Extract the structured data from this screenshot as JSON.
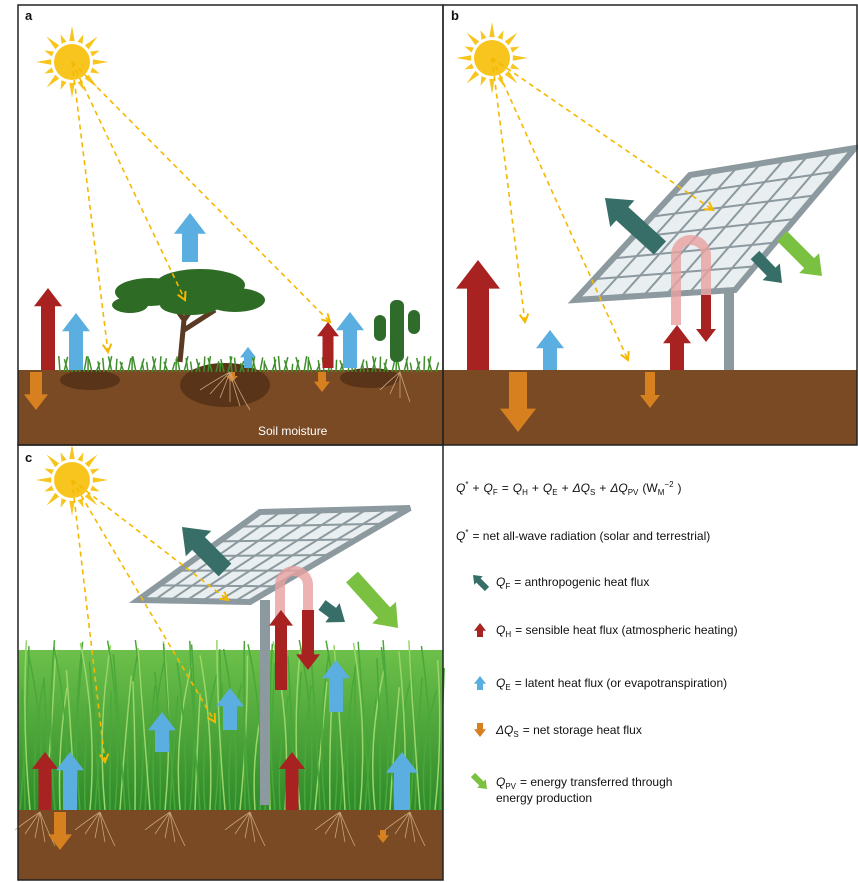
{
  "panels": [
    {
      "label": "a",
      "annotation": "Soil moisture"
    },
    {
      "label": "b"
    },
    {
      "label": "c"
    }
  ],
  "equation": [
    {
      "main": "Q",
      "sup": "*"
    },
    {
      "main": "+"
    },
    {
      "main": "Q",
      "sub": "F"
    },
    {
      "main": "="
    },
    {
      "main": "Q",
      "sub": "H"
    },
    {
      "main": "+"
    },
    {
      "main": "Q",
      "sub": "E"
    },
    {
      "main": "+"
    },
    {
      "main": "ΔQ",
      "sub": "S"
    },
    {
      "main": "+"
    },
    {
      "main": "ΔQ",
      "sub": "PV"
    },
    {
      "main": "(W",
      "sub": "M",
      "sup": "−2"
    },
    {
      "main": ")"
    }
  ],
  "legend": [
    {
      "symbol": "Q",
      "sup": "*",
      "text": "= net all-wave radiation (solar and terrestrial)"
    },
    {
      "symbol": "Q",
      "sub": "F",
      "text": "= anthropogenic heat flux"
    },
    {
      "symbol": "Q",
      "sub": "H",
      "text": "= sensible heat flux (atmospheric heating)"
    },
    {
      "symbol": "Q",
      "sub": "E",
      "text": "= latent heat flux (or evapotranspiration)"
    },
    {
      "symbol": "ΔQ",
      "sub": "S",
      "text": "= net storage heat flux"
    },
    {
      "symbol": "Q",
      "sub": "PV",
      "text": "= energy transferred through",
      "text2": "energy production"
    }
  ]
}
